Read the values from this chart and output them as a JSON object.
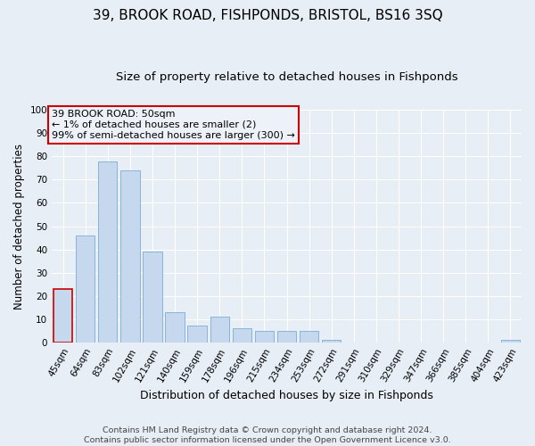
{
  "title": "39, BROOK ROAD, FISHPONDS, BRISTOL, BS16 3SQ",
  "subtitle": "Size of property relative to detached houses in Fishponds",
  "xlabel": "Distribution of detached houses by size in Fishponds",
  "ylabel": "Number of detached properties",
  "footer_line1": "Contains HM Land Registry data © Crown copyright and database right 2024.",
  "footer_line2": "Contains public sector information licensed under the Open Government Licence v3.0.",
  "categories": [
    "45sqm",
    "64sqm",
    "83sqm",
    "102sqm",
    "121sqm",
    "140sqm",
    "159sqm",
    "178sqm",
    "196sqm",
    "215sqm",
    "234sqm",
    "253sqm",
    "272sqm",
    "291sqm",
    "310sqm",
    "329sqm",
    "347sqm",
    "366sqm",
    "385sqm",
    "404sqm",
    "423sqm"
  ],
  "values": [
    23,
    46,
    78,
    74,
    39,
    13,
    7,
    11,
    6,
    5,
    5,
    5,
    1,
    0,
    0,
    0,
    0,
    0,
    0,
    0,
    1
  ],
  "bar_color": "#c5d8ee",
  "bar_edge_color": "#7aaed4",
  "highlight_bar_index": 0,
  "highlight_bar_edge_color": "#cc0000",
  "annotation_box_text": "39 BROOK ROAD: 50sqm\n← 1% of detached houses are smaller (2)\n99% of semi-detached houses are larger (300) →",
  "annotation_box_edge_color": "#cc0000",
  "annotation_box_facecolor": "#edf2f9",
  "ylim": [
    0,
    100
  ],
  "yticks": [
    0,
    10,
    20,
    30,
    40,
    50,
    60,
    70,
    80,
    90,
    100
  ],
  "bg_color": "#e8eef5",
  "grid_color": "#ffffff",
  "title_fontsize": 11,
  "subtitle_fontsize": 9.5,
  "xlabel_fontsize": 9,
  "ylabel_fontsize": 8.5,
  "tick_fontsize": 7.5,
  "footer_fontsize": 6.8
}
